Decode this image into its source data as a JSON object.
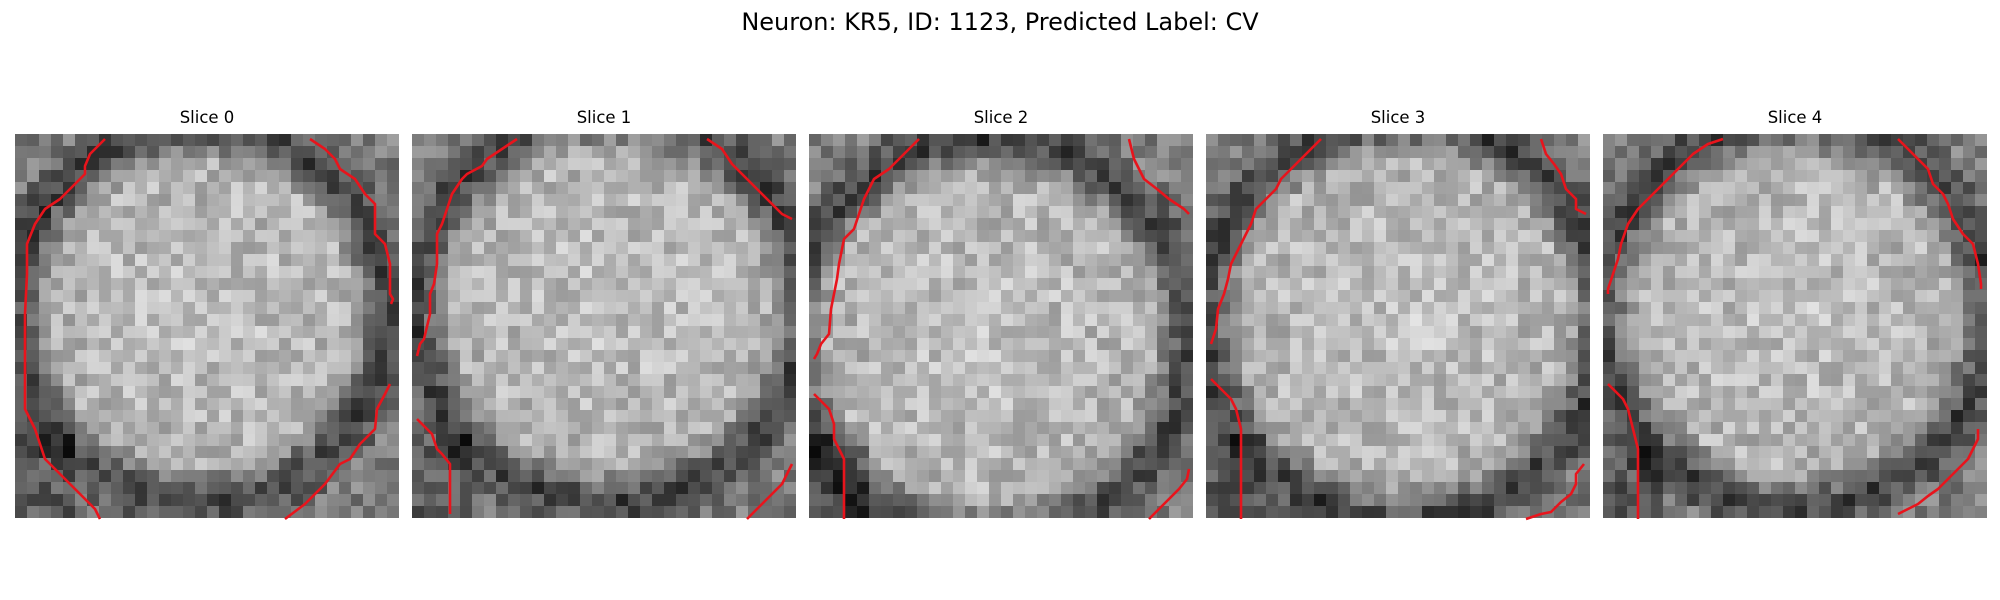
{
  "figure": {
    "title": "Neuron: KR5, ID: 1123, Predicted Label: CV"
  },
  "colors": {
    "contour": "#e8141c",
    "background": "#ffffff",
    "colormap": "grayscale"
  },
  "panels": [
    {
      "label": "Slice 0"
    },
    {
      "label": "Slice 1"
    },
    {
      "label": "Slice 2"
    },
    {
      "label": "Slice 3"
    },
    {
      "label": "Slice 4"
    }
  ]
}
